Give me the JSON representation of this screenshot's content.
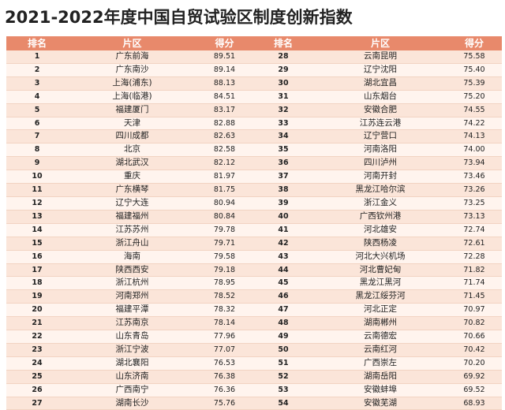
{
  "title": "2021-2022年度中国自贸试验区制度创新指数",
  "headers": [
    "排名",
    "片区",
    "得分",
    "排名",
    "片区",
    "得分"
  ],
  "rows": [
    [
      "1",
      "广东前海",
      "89.51",
      "28",
      "云南昆明",
      "75.58"
    ],
    [
      "2",
      "广东南沙",
      "89.14",
      "29",
      "辽宁沈阳",
      "75.40"
    ],
    [
      "3",
      "上海(浦东)",
      "88.13",
      "30",
      "湖北宜昌",
      "75.39"
    ],
    [
      "4",
      "上海(临港)",
      "84.51",
      "31",
      "山东烟台",
      "75.20"
    ],
    [
      "5",
      "福建厦门",
      "83.17",
      "32",
      "安徽合肥",
      "74.55"
    ],
    [
      "6",
      "天津",
      "82.88",
      "33",
      "江苏连云港",
      "74.22"
    ],
    [
      "7",
      "四川成都",
      "82.63",
      "34",
      "辽宁营口",
      "74.13"
    ],
    [
      "8",
      "北京",
      "82.58",
      "35",
      "河南洛阳",
      "74.00"
    ],
    [
      "9",
      "湖北武汉",
      "82.12",
      "36",
      "四川泸州",
      "73.94"
    ],
    [
      "10",
      "重庆",
      "81.97",
      "37",
      "河南开封",
      "73.46"
    ],
    [
      "11",
      "广东横琴",
      "81.75",
      "38",
      "黑龙江哈尔滨",
      "73.26"
    ],
    [
      "12",
      "辽宁大连",
      "80.94",
      "39",
      "浙江金义",
      "73.25"
    ],
    [
      "13",
      "福建福州",
      "80.84",
      "40",
      "广西钦州港",
      "73.13"
    ],
    [
      "14",
      "江苏苏州",
      "79.78",
      "41",
      "河北雄安",
      "72.74"
    ],
    [
      "15",
      "浙江舟山",
      "79.71",
      "42",
      "陕西杨凌",
      "72.61"
    ],
    [
      "16",
      "海南",
      "79.58",
      "43",
      "河北大兴机场",
      "72.28"
    ],
    [
      "17",
      "陕西西安",
      "79.18",
      "44",
      "河北曹妃甸",
      "71.82"
    ],
    [
      "18",
      "浙江杭州",
      "78.95",
      "45",
      "黑龙江黑河",
      "71.74"
    ],
    [
      "19",
      "河南郑州",
      "78.52",
      "46",
      "黑龙江绥芬河",
      "71.45"
    ],
    [
      "20",
      "福建平潭",
      "78.32",
      "47",
      "河北正定",
      "70.97"
    ],
    [
      "21",
      "江苏南京",
      "78.14",
      "48",
      "湖南郴州",
      "70.82"
    ],
    [
      "22",
      "山东青岛",
      "77.96",
      "49",
      "云南德宏",
      "70.66"
    ],
    [
      "23",
      "浙江宁波",
      "77.07",
      "50",
      "云南红河",
      "70.42"
    ],
    [
      "24",
      "湖北襄阳",
      "76.53",
      "51",
      "广西崇左",
      "70.20"
    ],
    [
      "25",
      "山东济南",
      "76.38",
      "52",
      "湖南岳阳",
      "69.92"
    ],
    [
      "26",
      "广西南宁",
      "76.36",
      "53",
      "安徽蚌埠",
      "69.52"
    ],
    [
      "27",
      "湖南长沙",
      "75.76",
      "54",
      "安徽芜湖",
      "68.93"
    ]
  ]
}
